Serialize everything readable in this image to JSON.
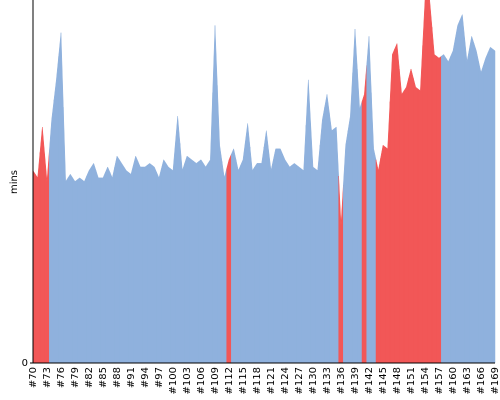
{
  "chart_data": {
    "type": "area",
    "y_label": "mins",
    "categories": [
      "#70",
      null,
      null,
      "#73",
      null,
      null,
      "#76",
      null,
      null,
      "#79",
      null,
      null,
      "#82",
      null,
      null,
      "#85",
      null,
      null,
      "#88",
      null,
      null,
      "#91",
      null,
      null,
      "#94",
      null,
      null,
      "#97",
      null,
      null,
      "#100",
      null,
      null,
      "#103",
      null,
      null,
      "#106",
      null,
      null,
      "#109",
      null,
      null,
      "#112",
      null,
      null,
      "#115",
      null,
      null,
      "#118",
      null,
      null,
      "#121",
      null,
      null,
      "#124",
      null,
      null,
      "#127",
      null,
      null,
      "#130",
      null,
      null,
      "#133",
      null,
      null,
      "#136",
      null,
      null,
      "#139",
      null,
      null,
      "#142",
      null,
      null,
      "#145",
      null,
      null,
      "#148",
      null,
      null,
      "#151",
      null,
      null,
      "#154",
      null,
      null,
      "#157",
      null,
      null,
      "#160",
      null,
      null,
      "#163",
      null,
      null,
      "#166",
      null,
      null,
      "#169"
    ],
    "values": [
      5.3,
      5.1,
      6.5,
      5.0,
      6.7,
      7.8,
      9.1,
      5.0,
      5.2,
      5.0,
      5.1,
      5.0,
      5.3,
      5.5,
      5.1,
      5.1,
      5.4,
      5.1,
      5.7,
      5.5,
      5.3,
      5.2,
      5.7,
      5.4,
      5.4,
      5.5,
      5.4,
      5.1,
      5.6,
      5.4,
      5.3,
      6.8,
      5.3,
      5.7,
      5.6,
      5.5,
      5.6,
      5.4,
      5.6,
      9.3,
      6.0,
      5.1,
      5.6,
      5.9,
      5.3,
      5.6,
      6.6,
      5.3,
      5.5,
      5.5,
      6.4,
      5.3,
      5.9,
      5.9,
      5.6,
      5.4,
      5.5,
      5.4,
      5.3,
      7.8,
      5.4,
      5.3,
      6.7,
      7.4,
      6.4,
      6.5,
      3.8,
      6.0,
      6.8,
      9.2,
      7.0,
      7.4,
      9.0,
      5.9,
      5.3,
      6.0,
      5.9,
      8.5,
      8.8,
      7.4,
      7.6,
      8.1,
      7.6,
      7.5,
      10,
      10,
      8.5,
      8.4,
      8.5,
      8.3,
      8.6,
      9.3,
      9.6,
      8.3,
      9.0,
      8.6,
      8.0,
      8.4,
      8.7,
      8.6
    ],
    "point_colors": [
      "#f25757",
      "#f25757",
      "#f25757",
      "#f25757",
      "#8fb1dd",
      "#8fb1dd",
      "#8fb1dd",
      "#8fb1dd",
      "#8fb1dd",
      "#8fb1dd",
      "#8fb1dd",
      "#8fb1dd",
      "#8fb1dd",
      "#8fb1dd",
      "#8fb1dd",
      "#8fb1dd",
      "#8fb1dd",
      "#8fb1dd",
      "#8fb1dd",
      "#8fb1dd",
      "#8fb1dd",
      "#8fb1dd",
      "#8fb1dd",
      "#8fb1dd",
      "#8fb1dd",
      "#8fb1dd",
      "#8fb1dd",
      "#8fb1dd",
      "#8fb1dd",
      "#8fb1dd",
      "#8fb1dd",
      "#8fb1dd",
      "#8fb1dd",
      "#8fb1dd",
      "#8fb1dd",
      "#8fb1dd",
      "#8fb1dd",
      "#8fb1dd",
      "#8fb1dd",
      "#8fb1dd",
      "#8fb1dd",
      "#8fb1dd",
      "#f25757",
      "#8fb1dd",
      "#8fb1dd",
      "#8fb1dd",
      "#8fb1dd",
      "#8fb1dd",
      "#8fb1dd",
      "#8fb1dd",
      "#8fb1dd",
      "#8fb1dd",
      "#8fb1dd",
      "#8fb1dd",
      "#8fb1dd",
      "#8fb1dd",
      "#8fb1dd",
      "#8fb1dd",
      "#8fb1dd",
      "#8fb1dd",
      "#8fb1dd",
      "#8fb1dd",
      "#8fb1dd",
      "#8fb1dd",
      "#8fb1dd",
      "#8fb1dd",
      "#f25757",
      "#8fb1dd",
      "#8fb1dd",
      "#8fb1dd",
      "#8fb1dd",
      "#f25757",
      "#8fb1dd",
      "#8fb1dd",
      "#f25757",
      "#f25757",
      "#f25757",
      "#f25757",
      "#f25757",
      "#f25757",
      "#f25757",
      "#f25757",
      "#f25757",
      "#f25757",
      "#f25757",
      "#f25757",
      "#f25757",
      "#f25757",
      "#8fb1dd",
      "#8fb1dd",
      "#8fb1dd",
      "#8fb1dd",
      "#8fb1dd",
      "#8fb1dd",
      "#8fb1dd",
      "#8fb1dd",
      "#8fb1dd",
      "#8fb1dd",
      "#8fb1dd",
      "#8fb1dd"
    ],
    "ylim": [
      0,
      10
    ],
    "yticks": [
      0
    ]
  }
}
